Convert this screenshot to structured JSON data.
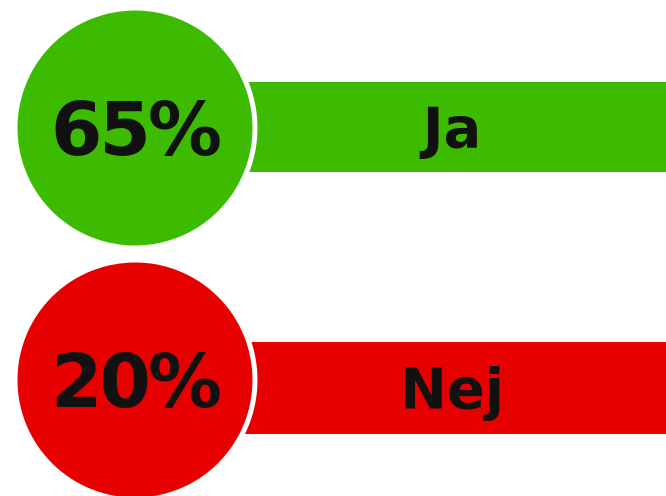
{
  "items": [
    {
      "percent": "65%",
      "label": "Ja",
      "color": "#3dbb00"
    },
    {
      "percent": "20%",
      "label": "Nej",
      "color": "#e60000"
    }
  ]
}
